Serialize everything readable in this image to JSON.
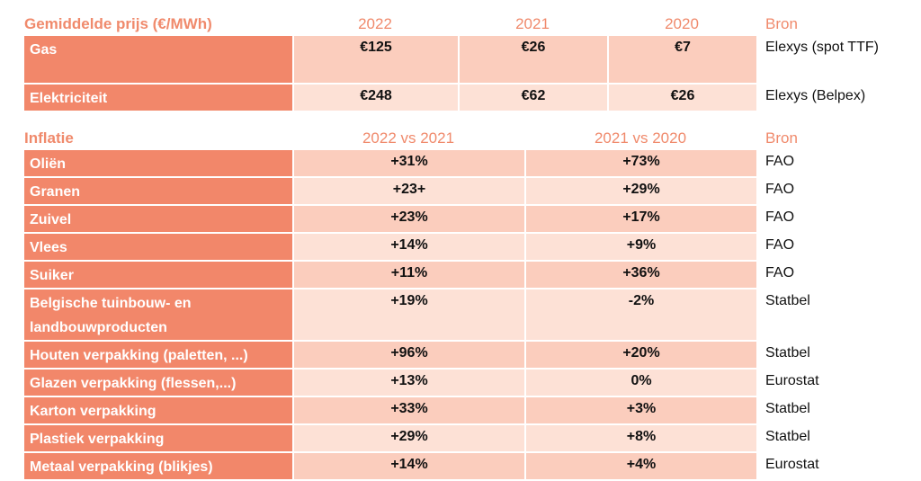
{
  "prices": {
    "headers": [
      "Gemiddelde prijs (€/MWh)",
      "2022",
      "2021",
      "2020",
      "Bron"
    ],
    "rows": [
      {
        "label": "Gas",
        "values": [
          "€125",
          "€26",
          "€7"
        ],
        "source": "Elexys (spot TTF)"
      },
      {
        "label": "Elektriciteit",
        "values": [
          "€248",
          "€62",
          "€26"
        ],
        "source": "Elexys (Belpex)"
      }
    ]
  },
  "inflation": {
    "headers": [
      "Inflatie",
      "2022 vs 2021",
      "2021 vs 2020",
      "Bron"
    ],
    "rows": [
      {
        "label": "Oliën",
        "values": [
          "+31%",
          "+73%"
        ],
        "source": "FAO"
      },
      {
        "label": "Granen",
        "values": [
          "+23+",
          "+29%"
        ],
        "source": "FAO"
      },
      {
        "label": "Zuivel",
        "values": [
          "+23%",
          "+17%"
        ],
        "source": "FAO"
      },
      {
        "label": "Vlees",
        "values": [
          "+14%",
          "+9%"
        ],
        "source": "FAO"
      },
      {
        "label": "Suiker",
        "values": [
          "+11%",
          "+36%"
        ],
        "source": "FAO"
      },
      {
        "label": "Belgische tuinbouw- en landbouwproducten",
        "values": [
          "+19%",
          "-2%"
        ],
        "source": "Statbel"
      },
      {
        "label": "Houten verpakking (paletten, ...)",
        "values": [
          "+96%",
          "+20%"
        ],
        "source": "Statbel"
      },
      {
        "label": "Glazen verpakking (flessen,...)",
        "values": [
          "+13%",
          "0%"
        ],
        "source": "Eurostat"
      },
      {
        "label": "Karton verpakking",
        "values": [
          "+33%",
          "+3%"
        ],
        "source": "Statbel"
      },
      {
        "label": "Plastiek verpakking",
        "values": [
          "+29%",
          "+8%"
        ],
        "source": "Statbel"
      },
      {
        "label": "Metaal verpakking (blikjes)",
        "values": [
          "+14%",
          "+4%"
        ],
        "source": "Eurostat"
      }
    ]
  },
  "colors": {
    "label_bg": "#f2876a",
    "cell_dark": "#fbcdbd",
    "cell_light": "#fde1d6",
    "header_text": "#f08a6c"
  }
}
